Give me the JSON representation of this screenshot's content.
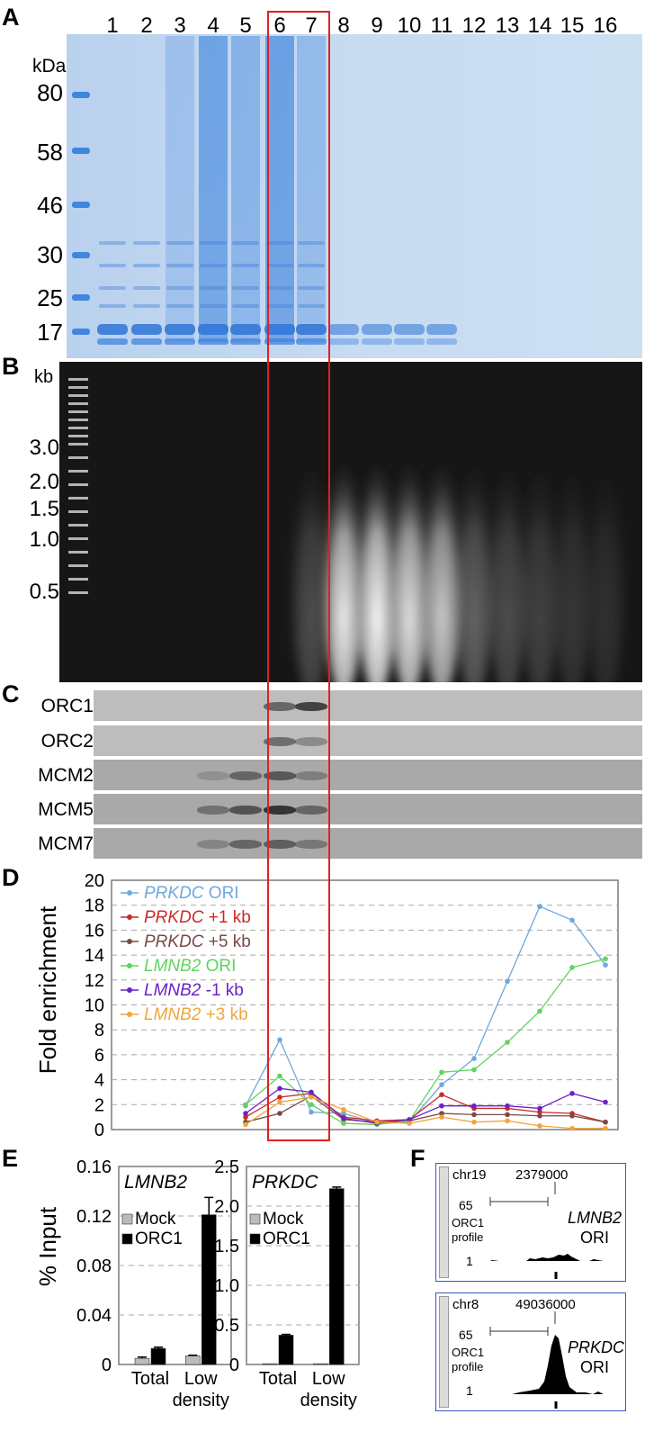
{
  "panels": {
    "A": "A",
    "B": "B",
    "C": "C",
    "D": "D",
    "E": "E",
    "F": "F"
  },
  "panel_a": {
    "lane_numbers": [
      "1",
      "2",
      "3",
      "4",
      "5",
      "6",
      "7",
      "8",
      "9",
      "10",
      "11",
      "12",
      "13",
      "14",
      "15",
      "16"
    ],
    "mw_unit": "kDa",
    "mw_markers": [
      "80",
      "58",
      "46",
      "30",
      "25",
      "17"
    ],
    "gel_color": "#c8dcf0"
  },
  "panel_b": {
    "size_unit": "kb",
    "size_markers": [
      "3.0",
      "2.0",
      "1.5",
      "1.0",
      "0.5"
    ]
  },
  "panel_c": {
    "proteins": [
      "ORC1",
      "ORC2",
      "MCM2",
      "MCM5",
      "MCM7"
    ]
  },
  "highlight": {
    "lanes": [
      "6",
      "7"
    ],
    "color": "#e02020"
  },
  "chart_data": [
    {
      "type": "line",
      "panel": "D",
      "ylabel": "Fold enrichment",
      "ylim": [
        0,
        20
      ],
      "yticks": [
        0,
        2,
        4,
        6,
        8,
        10,
        12,
        14,
        16,
        18,
        20
      ],
      "x": [
        5,
        6,
        7,
        8,
        9,
        10,
        11,
        12,
        13,
        14,
        15,
        16
      ],
      "series": [
        {
          "gene": "PRKDC",
          "label": "ORI",
          "color": "#6fa8dc",
          "values": [
            1.9,
            7.2,
            1.4,
            1.3,
            0.5,
            0.6,
            3.6,
            5.7,
            11.9,
            17.9,
            16.8,
            13.2
          ]
        },
        {
          "gene": "PRKDC",
          "label": "+1 kb",
          "color": "#cc2a2a",
          "values": [
            1.0,
            2.6,
            2.9,
            1.0,
            0.7,
            0.8,
            2.8,
            1.7,
            1.7,
            1.4,
            1.3,
            0.6
          ]
        },
        {
          "gene": "PRKDC",
          "label": "+5 kb",
          "color": "#7a4a44",
          "values": [
            0.6,
            1.3,
            2.7,
            0.8,
            0.6,
            0.7,
            1.3,
            1.2,
            1.2,
            1.1,
            1.1,
            0.6
          ]
        },
        {
          "gene": "LMNB2",
          "label": "ORI",
          "color": "#5fd35f",
          "values": [
            2.0,
            4.3,
            2.0,
            0.5,
            0.4,
            0.7,
            4.6,
            4.8,
            7.0,
            9.5,
            13.0,
            13.7
          ]
        },
        {
          "gene": "LMNB2",
          "label": "-1 kb",
          "color": "#6a22c8",
          "values": [
            1.3,
            3.3,
            3.0,
            0.9,
            0.5,
            0.8,
            1.9,
            1.9,
            1.9,
            1.7,
            2.9,
            2.2
          ]
        },
        {
          "gene": "LMNB2",
          "label": "+3 kb",
          "color": "#f0a53c",
          "values": [
            0.4,
            2.2,
            2.6,
            1.6,
            0.6,
            0.5,
            1.0,
            0.6,
            0.7,
            0.3,
            0.1,
            0.1
          ]
        }
      ],
      "legend_placement": "top-left",
      "grid": true
    },
    {
      "type": "bar",
      "panel": "E-left",
      "gene": "LMNB2",
      "ylabel": "% Input",
      "ylim": [
        0,
        0.16
      ],
      "yticks": [
        "0",
        "0.04",
        "0.08",
        "0.12",
        "0.16"
      ],
      "categories": [
        "Total",
        "Low density"
      ],
      "category_lines": [
        [
          "Total"
        ],
        [
          "Low",
          "density"
        ]
      ],
      "series": [
        {
          "name": "Mock",
          "color": "#bbbbbb",
          "values": [
            0.005,
            0.007
          ]
        },
        {
          "name": "ORC1",
          "color": "#000000",
          "values": [
            0.013,
            0.121
          ]
        }
      ],
      "errors": [
        [
          0.001,
          0.0005
        ],
        [
          0.001,
          0.014
        ]
      ]
    },
    {
      "type": "bar",
      "panel": "E-right",
      "gene": "PRKDC",
      "ylim": [
        0,
        2.5
      ],
      "yticks": [
        "0",
        "0.5",
        "1.0",
        "1.5",
        "2.0",
        "2.5"
      ],
      "categories": [
        "Total",
        "Low density"
      ],
      "category_lines": [
        [
          "Total"
        ],
        [
          "Low",
          "density"
        ]
      ],
      "series": [
        {
          "name": "Mock",
          "color": "#bbbbbb",
          "values": [
            0.01,
            0.01
          ]
        },
        {
          "name": "ORC1",
          "color": "#000000",
          "values": [
            0.37,
            2.22
          ]
        }
      ],
      "errors": [
        [
          0,
          0
        ],
        [
          0.01,
          0.02
        ]
      ]
    }
  ],
  "panel_f": {
    "tracks": [
      {
        "chrom": "chr19",
        "position": "2379000",
        "ytop": "65",
        "ybottom": "1",
        "track_label_1": "ORC1",
        "track_label_2": "profile",
        "gene": "LMNB2",
        "ori": "ORI"
      },
      {
        "chrom": "chr8",
        "position": "49036000",
        "ytop": "65",
        "ybottom": "1",
        "track_label_1": "ORC1",
        "track_label_2": "profile",
        "gene": "PRKDC",
        "ori": "ORI"
      }
    ]
  }
}
